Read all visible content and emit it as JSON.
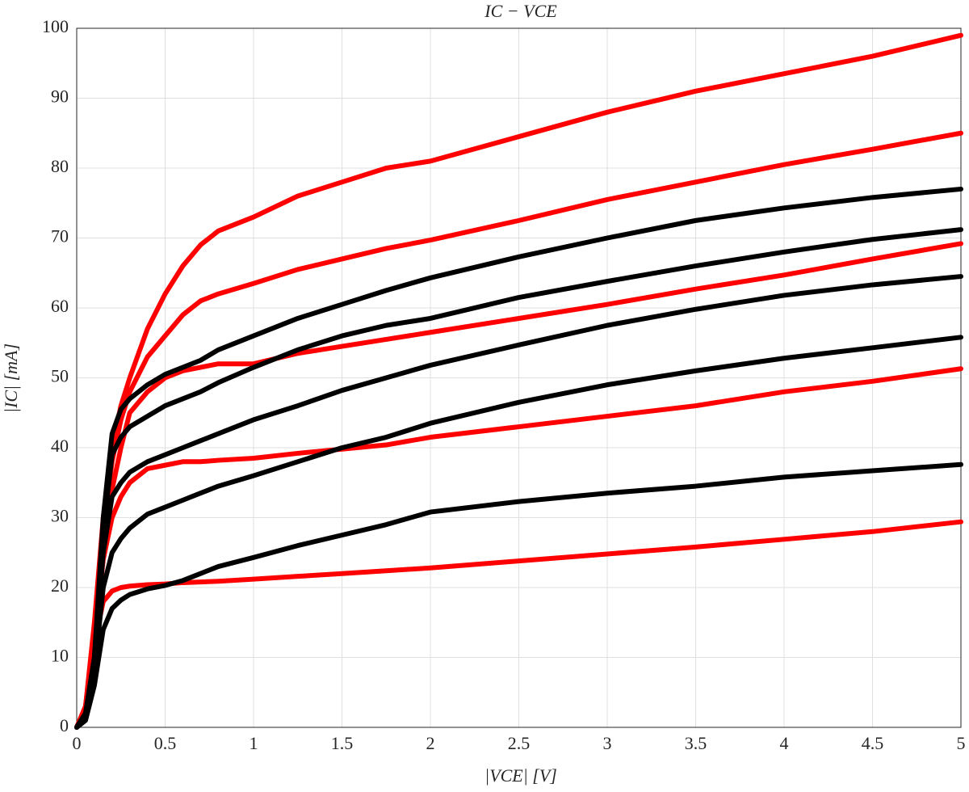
{
  "chart_data": {
    "type": "line",
    "title": "IC − VCE",
    "xlabel": "|VCE| [V]",
    "ylabel": "|IC| [mA]",
    "x": [
      0,
      0.05,
      0.1,
      0.15,
      0.2,
      0.25,
      0.3,
      0.4,
      0.5,
      0.6,
      0.7,
      0.8,
      1,
      1.25,
      1.5,
      1.75,
      2,
      2.5,
      3,
      3.5,
      4,
      4.5,
      5
    ],
    "series": [
      {
        "color": "#ff0000",
        "values": [
          0,
          3,
          15,
          30,
          40,
          46,
          50,
          57,
          62,
          66,
          69,
          71,
          73,
          76,
          78,
          80,
          81,
          84.5,
          88,
          91,
          93.5,
          96,
          99
        ]
      },
      {
        "color": "#ff0000",
        "values": [
          0,
          3,
          14,
          28,
          38,
          44,
          48,
          53,
          56,
          59,
          61,
          62,
          63.5,
          65.5,
          67,
          68.5,
          69.7,
          72.5,
          75.5,
          78,
          80.5,
          82.7,
          85
        ]
      },
      {
        "color": "#ff0000",
        "values": [
          0,
          3,
          13,
          26,
          34,
          40,
          45,
          48,
          50,
          51,
          51.5,
          52,
          52,
          53.5,
          54.5,
          55.5,
          56.5,
          58.5,
          60.5,
          62.7,
          64.7,
          67,
          69.2
        ]
      },
      {
        "color": "#ff0000",
        "values": [
          0,
          3,
          12,
          24,
          30,
          33,
          35,
          37,
          37.5,
          38,
          38,
          38.2,
          38.5,
          39.2,
          39.8,
          40.4,
          41.5,
          43,
          44.5,
          46,
          48,
          49.5,
          51.3
        ]
      },
      {
        "color": "#ff0000",
        "values": [
          0,
          3,
          12,
          18,
          19.5,
          20,
          20.2,
          20.4,
          20.5,
          20.7,
          20.8,
          20.9,
          21.2,
          21.6,
          22,
          22.4,
          22.8,
          23.8,
          24.8,
          25.8,
          26.9,
          28,
          29.4
        ]
      },
      {
        "color": "#000000",
        "values": [
          0,
          2,
          10,
          30,
          42,
          45.5,
          47,
          49,
          50.5,
          51.5,
          52.5,
          54,
          56,
          58.5,
          60.5,
          62.5,
          64.3,
          67.3,
          70,
          72.5,
          74.3,
          75.8,
          77
        ]
      },
      {
        "color": "#000000",
        "values": [
          0,
          2,
          10,
          28,
          39,
          41.5,
          43,
          44.5,
          46,
          47,
          48,
          49.3,
          51.5,
          54,
          56,
          57.5,
          58.5,
          61.5,
          63.8,
          66,
          68,
          69.8,
          71.2
        ]
      },
      {
        "color": "#000000",
        "values": [
          0,
          2,
          9,
          25,
          33,
          35,
          36.5,
          38,
          39,
          40,
          41,
          42,
          44,
          46,
          48.2,
          50,
          51.8,
          54.7,
          57.5,
          59.8,
          61.8,
          63.3,
          64.5
        ]
      },
      {
        "color": "#000000",
        "values": [
          0,
          2,
          8,
          20,
          25,
          27,
          28.5,
          30.5,
          31.5,
          32.5,
          33.5,
          34.5,
          36,
          38,
          40,
          41.5,
          43.5,
          46.5,
          49,
          51,
          52.8,
          54.3,
          55.8
        ]
      },
      {
        "color": "#000000",
        "values": [
          0,
          1,
          6,
          14,
          17,
          18.2,
          19,
          19.8,
          20.3,
          21,
          22,
          23,
          24.3,
          26,
          27.5,
          29,
          30.8,
          32.3,
          33.5,
          34.5,
          35.8,
          36.7,
          37.6
        ]
      }
    ],
    "xlim": [
      0,
      5
    ],
    "ylim": [
      0,
      100
    ],
    "xticks": [
      0,
      0.5,
      1,
      1.5,
      2,
      2.5,
      3,
      3.5,
      4,
      4.5,
      5
    ],
    "yticks": [
      0,
      10,
      20,
      30,
      40,
      50,
      60,
      70,
      80,
      90,
      100
    ],
    "grid": true
  }
}
